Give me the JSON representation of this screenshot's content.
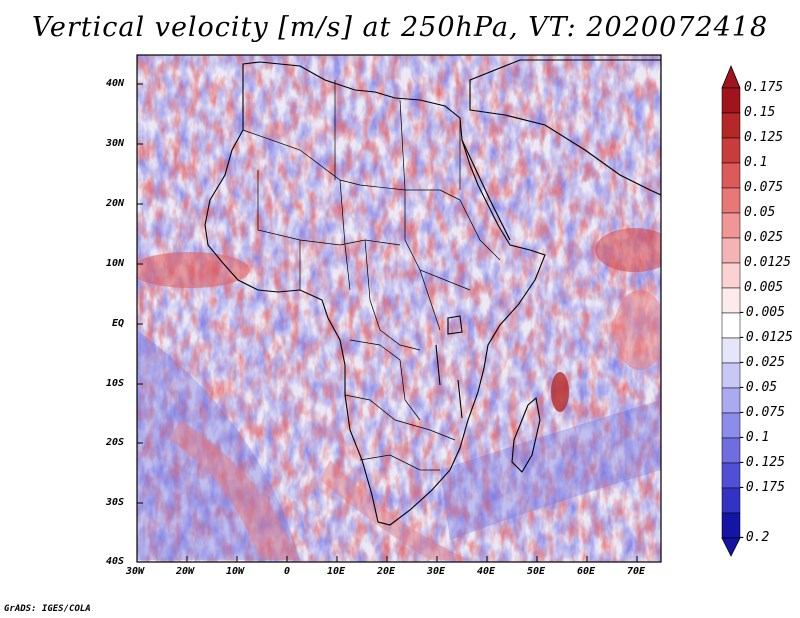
{
  "title": "Vertical velocity [m/s] at 250hPa, VT: 2020072418",
  "footer": "GrADS: IGES/COLA",
  "map": {
    "lat_labels": [
      "40N",
      "30N",
      "20N",
      "10N",
      "EQ",
      "10S",
      "20S",
      "30S",
      "40S"
    ],
    "lon_labels": [
      "30W",
      "20W",
      "10W",
      "0",
      "10E",
      "20E",
      "30E",
      "40E",
      "50E",
      "60E",
      "70E"
    ],
    "lat_range": [
      -40,
      45
    ],
    "lon_range": [
      -30,
      75
    ]
  },
  "colorbar": {
    "labels": [
      "0.175",
      "0.15",
      "0.125",
      "0.1",
      "0.075",
      "0.05",
      "0.025",
      "0.0125",
      "0.005",
      "-0.005",
      "-0.0125",
      "-0.025",
      "-0.05",
      "-0.075",
      "-0.1",
      "-0.125",
      "-0.175",
      "-0.2"
    ],
    "colors": [
      "#a0141e",
      "#b42828",
      "#c83c3c",
      "#dc5a5a",
      "#e87878",
      "#f09696",
      "#f5b4b4",
      "#fad2d2",
      "#fdebeb",
      "#ffffff",
      "#e6e6fa",
      "#c8c8f5",
      "#aaaaf0",
      "#8c8ceb",
      "#6e6ee1",
      "#5050d7",
      "#3232c3",
      "#1414a5"
    ]
  },
  "colors": {
    "field_neutral": "#f2eef6",
    "field_blue": "#8c8ceb",
    "field_red": "#e87878",
    "coast": "#000000"
  }
}
